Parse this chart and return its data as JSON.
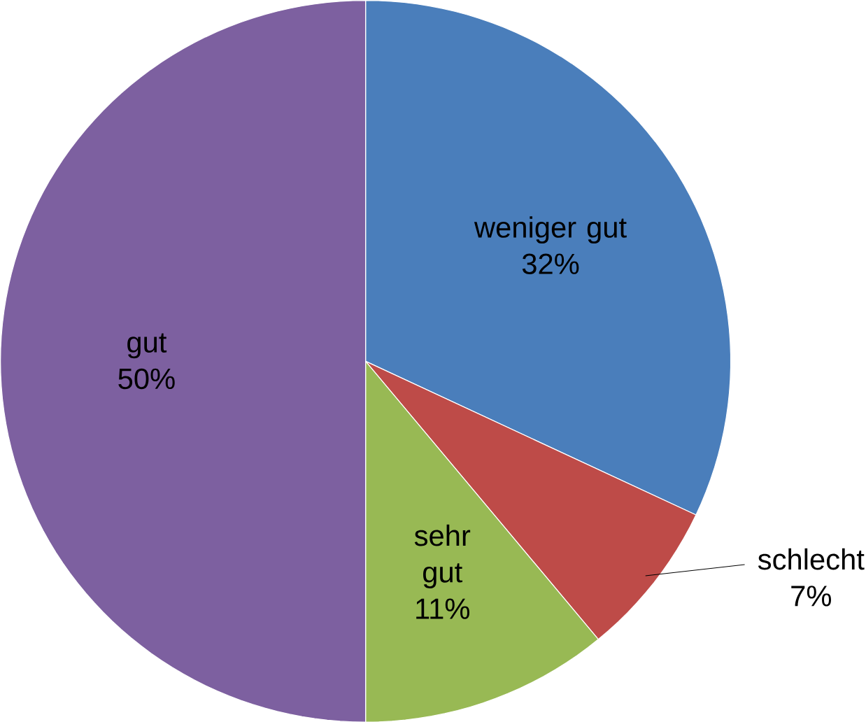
{
  "chart_data": {
    "type": "pie",
    "categories": [
      "weniger gut",
      "schlecht",
      "sehr gut",
      "gut"
    ],
    "values": [
      32,
      7,
      11,
      50
    ],
    "value_labels": [
      "32%",
      "7%",
      "11%",
      "50%"
    ],
    "colors": [
      "#4a7ebb",
      "#be4b48",
      "#98b954",
      "#7d60a0"
    ]
  }
}
